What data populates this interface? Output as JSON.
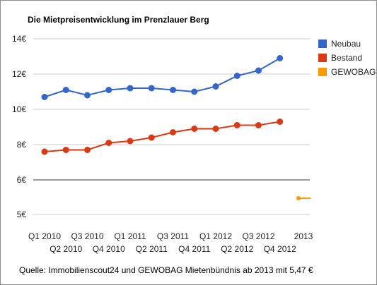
{
  "chart_data": {
    "type": "line",
    "title": "Die Mietpreisentwicklung im Prenzlauer Berg",
    "xlabel": "",
    "ylabel": "",
    "categories": [
      "Q1 2010",
      "Q2 2010",
      "Q3 2010",
      "Q4 2010",
      "Q1 2011",
      "Q2 2011",
      "Q3 2011",
      "Q4 2011",
      "Q1 2012",
      "Q2 2012",
      "Q3 2012",
      "Q4 2012",
      "2013"
    ],
    "y_ticks": [
      {
        "value": 5,
        "label": "5€"
      },
      {
        "value": 6,
        "label": "6€"
      },
      {
        "value": 8,
        "label": "8€"
      },
      {
        "value": 10,
        "label": "10€"
      },
      {
        "value": 12,
        "label": "12€"
      },
      {
        "value": 14,
        "label": "14€"
      }
    ],
    "y_axis_break": true,
    "grid": true,
    "legend_position": "right",
    "series": [
      {
        "name": "Neubau",
        "color": "#3366cc",
        "values": [
          10.7,
          11.1,
          10.8,
          11.1,
          11.2,
          11.2,
          11.1,
          11.0,
          11.3,
          11.9,
          12.2,
          12.9,
          null
        ]
      },
      {
        "name": "Bestand",
        "color": "#dc3912",
        "values": [
          7.6,
          7.7,
          7.7,
          8.1,
          8.2,
          8.4,
          8.7,
          8.9,
          8.9,
          9.1,
          9.1,
          9.3,
          null
        ]
      },
      {
        "name": "GEWOBAG",
        "color": "#ff9900",
        "values": [
          null,
          null,
          null,
          null,
          null,
          null,
          null,
          null,
          null,
          null,
          null,
          null,
          5.47
        ]
      }
    ]
  },
  "source_text": "Quelle: Immobilienscout24 und  GEWOBAG Mietenbündnis ab 2013 mit 5,47 €"
}
